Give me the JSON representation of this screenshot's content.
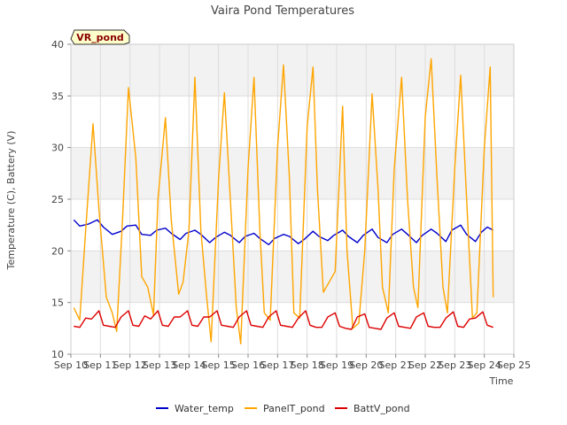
{
  "chart_data": {
    "type": "line",
    "title": "Vaira Pond Temperatures",
    "xlabel": "Time",
    "ylabel": "Temperature (C), Battery (V)",
    "station_label": "VR_pond",
    "xlim": [
      10,
      25
    ],
    "ylim": [
      10,
      40
    ],
    "x_ticks": [
      10,
      11,
      12,
      13,
      14,
      15,
      16,
      17,
      18,
      19,
      20,
      21,
      22,
      23,
      24,
      25
    ],
    "x_tick_labels": [
      "Sep 10",
      "Sep 11",
      "Sep 12",
      "Sep 13",
      "Sep 14",
      "Sep 15",
      "Sep 16",
      "Sep 17",
      "Sep 18",
      "Sep 19",
      "Sep 20",
      "Sep 21",
      "Sep 22",
      "Sep 23",
      "Sep 24",
      "Sep 25"
    ],
    "y_ticks": [
      10,
      15,
      20,
      25,
      30,
      35,
      40
    ],
    "y_tick_labels": [
      "10",
      "15",
      "20",
      "25",
      "30",
      "35",
      "40"
    ],
    "grid": true,
    "background_bands": true,
    "legend_position": "bottom",
    "series": [
      {
        "name": "Water_temp",
        "color": "#0000cc",
        "x": [
          10.1,
          10.3,
          10.6,
          10.9,
          11.1,
          11.4,
          11.7,
          11.9,
          12.2,
          12.4,
          12.7,
          12.9,
          13.2,
          13.4,
          13.7,
          13.9,
          14.2,
          14.4,
          14.7,
          14.9,
          15.2,
          15.4,
          15.7,
          15.9,
          16.2,
          16.4,
          16.7,
          16.9,
          17.2,
          17.4,
          17.7,
          17.9,
          18.2,
          18.4,
          18.7,
          18.9,
          19.2,
          19.4,
          19.7,
          19.9,
          20.2,
          20.4,
          20.7,
          20.9,
          21.2,
          21.4,
          21.7,
          21.9,
          22.2,
          22.4,
          22.7,
          22.9,
          23.2,
          23.4,
          23.7,
          23.9,
          24.1,
          24.3
        ],
        "y": [
          23.0,
          22.4,
          22.6,
          23.0,
          22.3,
          21.6,
          21.9,
          22.4,
          22.5,
          21.6,
          21.5,
          22.0,
          22.2,
          21.7,
          21.1,
          21.7,
          22.0,
          21.6,
          20.8,
          21.3,
          21.8,
          21.5,
          20.8,
          21.4,
          21.7,
          21.2,
          20.6,
          21.2,
          21.6,
          21.4,
          20.7,
          21.1,
          21.9,
          21.4,
          21.0,
          21.5,
          22.0,
          21.4,
          20.8,
          21.5,
          22.1,
          21.3,
          20.8,
          21.6,
          22.1,
          21.6,
          20.8,
          21.5,
          22.1,
          21.7,
          20.9,
          22.0,
          22.5,
          21.6,
          20.9,
          21.8,
          22.3,
          22.0
        ]
      },
      {
        "name": "PanelT_pond",
        "color": "#ffa500",
        "x": [
          10.1,
          10.3,
          10.5,
          10.75,
          10.95,
          11.2,
          11.4,
          11.55,
          11.75,
          11.95,
          12.2,
          12.4,
          12.6,
          12.8,
          12.95,
          13.2,
          13.4,
          13.65,
          13.8,
          14.0,
          14.2,
          14.4,
          14.6,
          14.75,
          15.0,
          15.2,
          15.4,
          15.6,
          15.75,
          16.0,
          16.2,
          16.4,
          16.55,
          16.75,
          17.0,
          17.2,
          17.4,
          17.55,
          17.75,
          18.0,
          18.2,
          18.35,
          18.55,
          18.75,
          18.95,
          19.2,
          19.35,
          19.55,
          19.75,
          19.95,
          20.2,
          20.4,
          20.55,
          20.75,
          20.95,
          21.2,
          21.4,
          21.6,
          21.75,
          22.0,
          22.2,
          22.4,
          22.6,
          22.75,
          23.0,
          23.2,
          23.4,
          23.6,
          23.75,
          24.0,
          24.2,
          24.3
        ],
        "y": [
          14.5,
          13.3,
          22.0,
          32.3,
          24.0,
          15.5,
          14.0,
          12.2,
          23.0,
          35.8,
          29.0,
          17.5,
          16.5,
          13.8,
          25.0,
          32.9,
          23.0,
          15.8,
          17.0,
          22.0,
          36.8,
          22.0,
          15.5,
          11.2,
          27.0,
          35.3,
          25.0,
          14.5,
          11.0,
          28.0,
          36.8,
          22.0,
          14.0,
          13.3,
          30.0,
          38.0,
          27.0,
          14.0,
          13.5,
          32.0,
          37.8,
          26.0,
          16.0,
          17.0,
          18.0,
          34.0,
          20.0,
          12.5,
          13.0,
          20.0,
          35.2,
          26.0,
          16.5,
          14.0,
          28.0,
          36.8,
          25.0,
          16.5,
          14.5,
          33.0,
          38.6,
          27.0,
          16.5,
          14.0,
          28.0,
          37.0,
          25.0,
          13.5,
          14.0,
          30.0,
          37.8,
          15.5
        ]
      },
      {
        "name": "BattV_pond",
        "color": "#dd0000",
        "x": [
          10.1,
          10.3,
          10.5,
          10.7,
          10.95,
          11.1,
          11.3,
          11.5,
          11.7,
          11.95,
          12.1,
          12.3,
          12.5,
          12.7,
          12.95,
          13.1,
          13.3,
          13.5,
          13.7,
          13.95,
          14.1,
          14.3,
          14.5,
          14.7,
          14.95,
          15.1,
          15.3,
          15.5,
          15.7,
          15.95,
          16.1,
          16.3,
          16.5,
          16.7,
          16.95,
          17.1,
          17.3,
          17.5,
          17.7,
          17.95,
          18.1,
          18.3,
          18.5,
          18.7,
          18.95,
          19.1,
          19.3,
          19.5,
          19.7,
          19.95,
          20.1,
          20.3,
          20.5,
          20.7,
          20.95,
          21.1,
          21.3,
          21.5,
          21.7,
          21.95,
          22.1,
          22.3,
          22.5,
          22.7,
          22.95,
          23.1,
          23.3,
          23.5,
          23.7,
          23.95,
          24.1,
          24.3
        ],
        "y": [
          12.7,
          12.6,
          13.5,
          13.4,
          14.2,
          12.8,
          12.7,
          12.6,
          13.6,
          14.2,
          12.8,
          12.7,
          13.7,
          13.4,
          14.2,
          12.8,
          12.7,
          13.6,
          13.6,
          14.2,
          12.8,
          12.7,
          13.6,
          13.6,
          14.2,
          12.8,
          12.7,
          12.6,
          13.6,
          14.2,
          12.8,
          12.7,
          12.6,
          13.6,
          14.2,
          12.8,
          12.7,
          12.6,
          13.5,
          14.2,
          12.8,
          12.6,
          12.6,
          13.6,
          14.0,
          12.7,
          12.5,
          12.4,
          13.6,
          13.9,
          12.6,
          12.5,
          12.4,
          13.5,
          14.0,
          12.7,
          12.6,
          12.5,
          13.6,
          14.0,
          12.7,
          12.6,
          12.6,
          13.5,
          14.1,
          12.7,
          12.6,
          13.4,
          13.5,
          14.1,
          12.8,
          12.6
        ]
      }
    ]
  }
}
